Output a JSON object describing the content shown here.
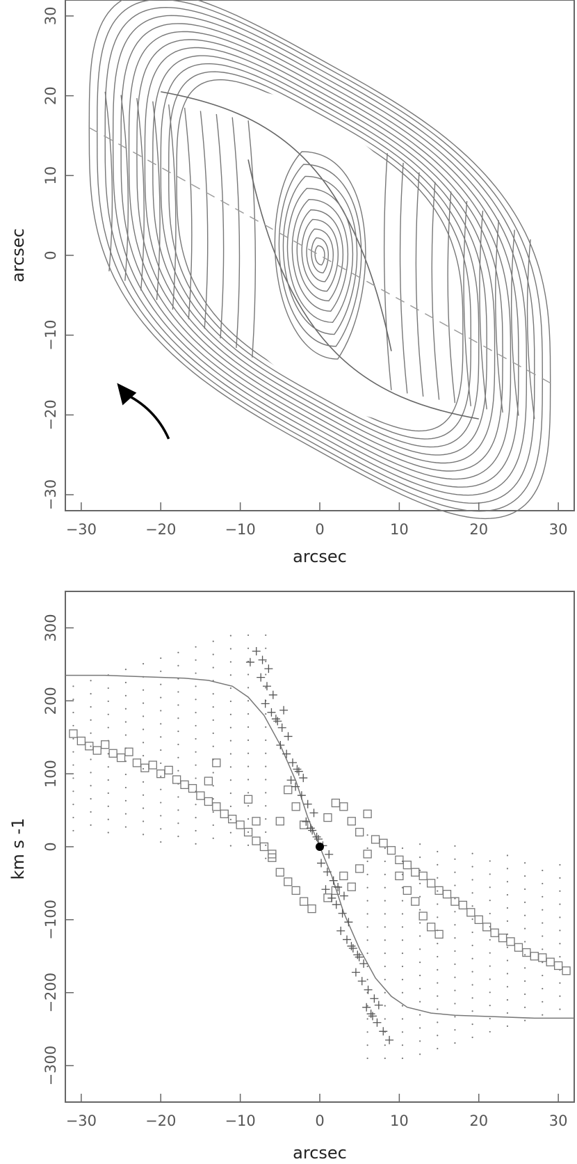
{
  "chart_data": [
    {
      "panel": "top",
      "type": "contour",
      "title": "",
      "xlabel": "arcsec",
      "ylabel": "arcsec",
      "xlim": [
        -32,
        32
      ],
      "ylim": [
        -32,
        32
      ],
      "xticks": [
        -30,
        -20,
        -10,
        0,
        10,
        20,
        30
      ],
      "yticks": [
        -30,
        -20,
        -10,
        0,
        10,
        20,
        30
      ],
      "grid": false,
      "outer_contours_semi_axes": [
        [
          18,
          17
        ],
        [
          19,
          17.7
        ],
        [
          20,
          18.4
        ],
        [
          21,
          19.1
        ],
        [
          22,
          19.8
        ],
        [
          23,
          20.5
        ],
        [
          24,
          21.2
        ],
        [
          25,
          21.9
        ],
        [
          26,
          22.6
        ],
        [
          27,
          23.3
        ],
        [
          28,
          24.0
        ],
        [
          29,
          24.6
        ]
      ],
      "inner_contours_half_widths": [
        [
          7.5,
          13
        ],
        [
          6.8,
          11.4
        ],
        [
          6.1,
          9.9
        ],
        [
          5.4,
          8.4
        ],
        [
          4.6,
          7.0
        ],
        [
          3.8,
          5.7
        ],
        [
          3.0,
          4.5
        ],
        [
          2.2,
          3.3
        ],
        [
          1.4,
          2.2
        ],
        [
          0.8,
          1.2
        ]
      ],
      "dashed_major_axis": {
        "from": [
          -29,
          16
        ],
        "to": [
          29,
          -16
        ]
      },
      "arrow": {
        "from": [
          -19,
          -23
        ],
        "to": [
          -25.5,
          -16
        ],
        "color": "#000000"
      },
      "line_color": "#777777"
    },
    {
      "panel": "bottom",
      "type": "scatter",
      "title": "",
      "xlabel": "arcsec",
      "ylabel": "km s -1",
      "xlim": [
        -32,
        32
      ],
      "ylim": [
        -350,
        350
      ],
      "xticks": [
        -30,
        -20,
        -10,
        0,
        10,
        20,
        30
      ],
      "yticks": [
        -300,
        -200,
        -100,
        0,
        100,
        200,
        300
      ],
      "grid": false,
      "series": [
        {
          "marker": "solid-line",
          "points": [
            [
              -32,
              235
            ],
            [
              -27,
              235
            ],
            [
              -22,
              233
            ],
            [
              -17,
              231
            ],
            [
              -14,
              228
            ],
            [
              -11,
              220
            ],
            [
              -9,
              205
            ],
            [
              -7,
              180
            ],
            [
              -5,
              140
            ],
            [
              -3,
              90
            ],
            [
              -1.5,
              40
            ],
            [
              0,
              0
            ],
            [
              1.5,
              -40
            ],
            [
              3,
              -90
            ],
            [
              5,
              -140
            ],
            [
              7,
              -180
            ],
            [
              9,
              -205
            ],
            [
              11,
              -220
            ],
            [
              14,
              -228
            ],
            [
              17,
              -231
            ],
            [
              22,
              -233
            ],
            [
              27,
              -235
            ],
            [
              32,
              -235
            ]
          ]
        },
        {
          "marker": "square",
          "points": [
            [
              -31,
              155
            ],
            [
              -30,
              145
            ],
            [
              -29,
              138
            ],
            [
              -28,
              132
            ],
            [
              -27,
              140
            ],
            [
              -26,
              128
            ],
            [
              -25,
              122
            ],
            [
              -24,
              130
            ],
            [
              -23,
              115
            ],
            [
              -22,
              108
            ],
            [
              -21,
              112
            ],
            [
              -20,
              100
            ],
            [
              -19,
              105
            ],
            [
              -18,
              92
            ],
            [
              -17,
              85
            ],
            [
              -16,
              80
            ],
            [
              -15,
              70
            ],
            [
              -14,
              62
            ],
            [
              -13,
              55
            ],
            [
              -12,
              45
            ],
            [
              -11,
              38
            ],
            [
              -10,
              30
            ],
            [
              -9,
              20
            ],
            [
              -8,
              8
            ],
            [
              -7,
              0
            ],
            [
              -6,
              -15
            ],
            [
              -5,
              -35
            ],
            [
              -4,
              -48
            ],
            [
              -3,
              -60
            ],
            [
              -2,
              -75
            ],
            [
              -1,
              -85
            ],
            [
              -9,
              65
            ],
            [
              -8,
              35
            ],
            [
              -6,
              -10
            ],
            [
              -14,
              90
            ],
            [
              -13,
              115
            ],
            [
              -5,
              35
            ],
            [
              -4,
              78
            ],
            [
              -3,
              55
            ],
            [
              -2,
              30
            ],
            [
              1,
              40
            ],
            [
              2,
              60
            ],
            [
              3,
              55
            ],
            [
              4,
              35
            ],
            [
              5,
              20
            ],
            [
              6,
              45
            ],
            [
              7,
              10
            ],
            [
              8,
              5
            ],
            [
              9,
              -5
            ],
            [
              10,
              -18
            ],
            [
              11,
              -25
            ],
            [
              12,
              -35
            ],
            [
              13,
              -40
            ],
            [
              14,
              -50
            ],
            [
              15,
              -60
            ],
            [
              16,
              -65
            ],
            [
              17,
              -75
            ],
            [
              18,
              -80
            ],
            [
              19,
              -90
            ],
            [
              20,
              -100
            ],
            [
              21,
              -110
            ],
            [
              22,
              -118
            ],
            [
              23,
              -125
            ],
            [
              24,
              -130
            ],
            [
              25,
              -138
            ],
            [
              26,
              -145
            ],
            [
              27,
              -150
            ],
            [
              28,
              -152
            ],
            [
              29,
              -158
            ],
            [
              30,
              -163
            ],
            [
              31,
              -170
            ],
            [
              10,
              -40
            ],
            [
              11,
              -60
            ],
            [
              12,
              -75
            ],
            [
              13,
              -95
            ],
            [
              14,
              -110
            ],
            [
              15,
              -120
            ],
            [
              6,
              -10
            ],
            [
              5,
              -30
            ],
            [
              4,
              -55
            ],
            [
              3,
              -40
            ],
            [
              2,
              -60
            ],
            [
              1,
              -70
            ]
          ]
        },
        {
          "marker": "plus",
          "line_from": [
            -8,
            265
          ],
          "line_to": [
            8,
            -265
          ],
          "count": 60
        },
        {
          "marker": "dot",
          "region": "dotted model field",
          "upper_left_envelope": [
            [
              -31,
              220
            ],
            [
              -25,
              260
            ],
            [
              -18,
              275
            ],
            [
              -14,
              285
            ],
            [
              -11,
              295
            ],
            [
              -9,
              280
            ],
            [
              -7,
              260
            ]
          ],
          "lower_right_envelope": [
            [
              7,
              -260
            ],
            [
              9,
              -280
            ],
            [
              11,
              -295
            ],
            [
              14,
              -285
            ],
            [
              18,
              -275
            ],
            [
              25,
              -260
            ],
            [
              31,
              -220
            ]
          ]
        }
      ],
      "filled_center_marker": [
        0,
        0
      ]
    }
  ]
}
